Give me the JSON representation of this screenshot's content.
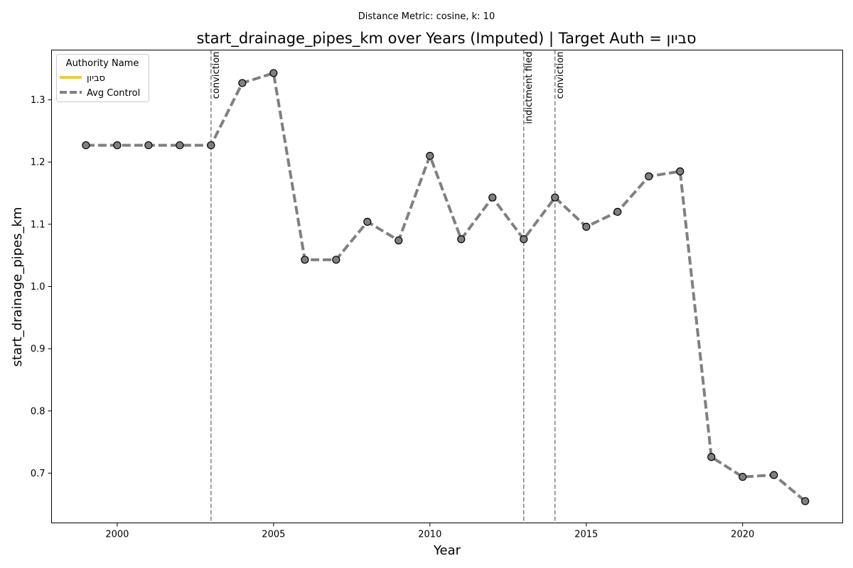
{
  "suptitle": "Distance Metric: cosine, k: 10",
  "chart_data": {
    "type": "line",
    "title": "start_drainage_pipes_km over Years (Imputed) | Target Auth = סביון",
    "xlabel": "Year",
    "ylabel": "start_drainage_pipes_km",
    "xlim": [
      1997.9,
      2023.2
    ],
    "ylim": [
      0.62,
      1.38
    ],
    "x_ticks": [
      2000,
      2005,
      2010,
      2015,
      2020
    ],
    "y_ticks": [
      0.7,
      0.8,
      0.9,
      1.0,
      1.1,
      1.2,
      1.3
    ],
    "y_tick_labels": [
      "0.7",
      "0.8",
      "0.9",
      "1.0",
      "1.1",
      "1.2",
      "1.3"
    ],
    "grid": false,
    "legend": {
      "title": "Authority Name",
      "placement": "top-left"
    },
    "series": [
      {
        "name": "סביון",
        "color": "#f0d020",
        "style": "solid",
        "x": [],
        "values": []
      },
      {
        "name": "Avg Control",
        "color": "#808080",
        "style": "dashed",
        "marker": "circle",
        "x": [
          1999,
          2000,
          2001,
          2002,
          2003,
          2004,
          2005,
          2006,
          2007,
          2008,
          2009,
          2010,
          2011,
          2012,
          2013,
          2014,
          2015,
          2016,
          2017,
          2018,
          2019,
          2020,
          2021,
          2022
        ],
        "values": [
          1.227,
          1.227,
          1.227,
          1.227,
          1.227,
          1.327,
          1.343,
          1.043,
          1.043,
          1.104,
          1.074,
          1.21,
          1.076,
          1.143,
          1.076,
          1.143,
          1.096,
          1.12,
          1.177,
          1.185,
          0.726,
          0.694,
          0.697,
          0.655
        ]
      }
    ],
    "events": [
      {
        "x": 2003,
        "label": "conviction"
      },
      {
        "x": 2013,
        "label": "indictment filed"
      },
      {
        "x": 2014,
        "label": "conviction"
      }
    ]
  }
}
